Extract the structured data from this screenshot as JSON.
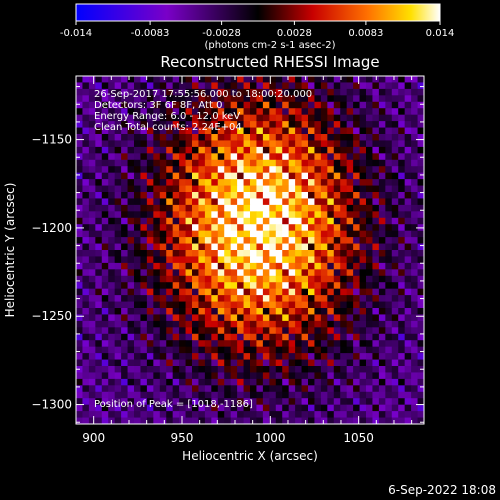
{
  "chart_data": {
    "type": "heatmap",
    "title": "Reconstructed RHESSI Image",
    "xlabel": "Heliocentric X (arcsec)",
    "ylabel": "Heliocentric Y (arcsec)",
    "xlim": [
      890,
      1087
    ],
    "ylim": [
      -1311,
      -1114
    ],
    "x_ticks": [
      900,
      950,
      1000,
      1050
    ],
    "y_ticks": [
      -1150,
      -1200,
      -1250,
      -1300
    ],
    "colorbar": {
      "range": [
        -0.014,
        0.014
      ],
      "ticks": [
        "-0.014",
        "-0.0083",
        "-0.0028",
        "0.0028",
        "0.0083",
        "0.014"
      ],
      "unit_label": "(photons cm-2 s-1 asec-2)"
    },
    "annotations": [
      "26-Sep-2017 17:55:56.000 to 18:00:20.000",
      "Detectors: 3F 6F 8F, Att 0",
      "Energy Range: 6.0 - 12.0 keV",
      "Clean    Total counts: 2.24E+04"
    ],
    "peak_label": "Position of Peak = [1018,-1186]",
    "peak": [
      1018,
      -1186
    ],
    "source_center": [
      993,
      -1198
    ]
  },
  "footer_date": "6-Sep-2022 18:08"
}
